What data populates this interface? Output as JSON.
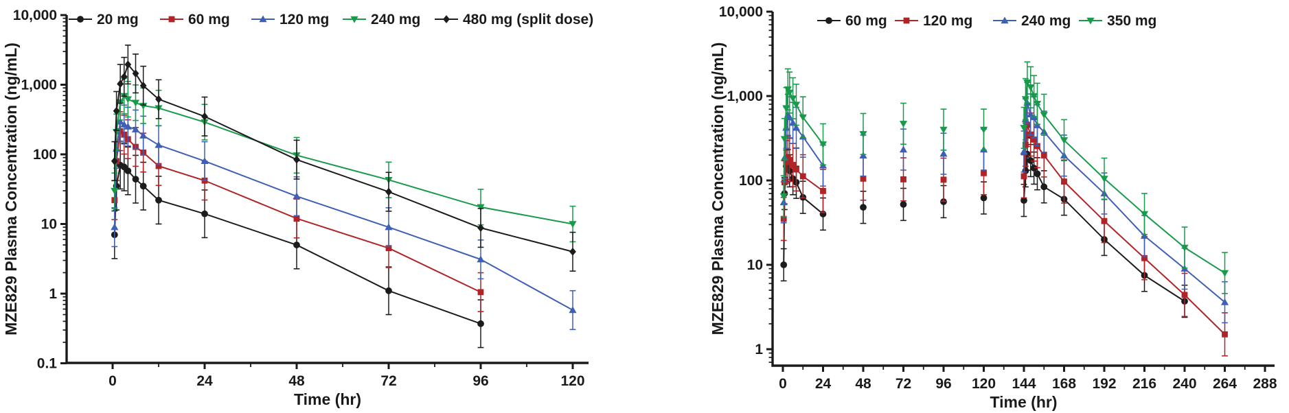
{
  "page": {
    "background": "#ffffff"
  },
  "charts": [
    {
      "id": "single-dose",
      "type": "line",
      "title": "",
      "xlabel": "Time (hr)",
      "ylabel": "MZE829 Plasma Concentration (ng/mL)",
      "x_unit": "hr",
      "xlim": [
        0,
        120
      ],
      "ylim": [
        0.1,
        10000
      ],
      "y_scale": "log",
      "grid": false,
      "legend_position": "top",
      "x_major_ticks": [
        0,
        24,
        48,
        72,
        96,
        120
      ],
      "x_minor_step": 12,
      "y_ticks": [
        {
          "value": 10000,
          "label": "10,000"
        },
        {
          "value": 1000,
          "label": "1,000"
        },
        {
          "value": 100,
          "label": "100"
        },
        {
          "value": 10,
          "label": "10"
        },
        {
          "value": 1,
          "label": "1"
        },
        {
          "value": 0.1,
          "label": "0.1"
        }
      ],
      "series": [
        {
          "label": "20 mg",
          "color": "#1c1c1c",
          "marker": "circle",
          "error_factor": 2.2,
          "segments": [
            [
              [
                0.5,
                7
              ],
              [
                1,
                35
              ],
              [
                2,
                70
              ],
              [
                3,
                66
              ],
              [
                4,
                58
              ],
              [
                6,
                44
              ],
              [
                8,
                35
              ],
              [
                12,
                22
              ],
              [
                24,
                14
              ],
              [
                48,
                5
              ],
              [
                72,
                1.1
              ],
              [
                96,
                0.37
              ]
            ]
          ]
        },
        {
          "label": "60 mg",
          "color": "#b02428",
          "marker": "square",
          "error_factor": 1.9,
          "segments": [
            [
              [
                0.5,
                22
              ],
              [
                1,
                80
              ],
              [
                2,
                215
              ],
              [
                3,
                192
              ],
              [
                4,
                165
              ],
              [
                6,
                128
              ],
              [
                8,
                106
              ],
              [
                12,
                68
              ],
              [
                24,
                42
              ],
              [
                48,
                12
              ],
              [
                72,
                4.5
              ],
              [
                96,
                1.05
              ]
            ]
          ]
        },
        {
          "label": "120 mg",
          "color": "#3f5fb5",
          "marker": "triangle-up",
          "error_factor": 1.9,
          "segments": [
            [
              [
                0.5,
                9
              ],
              [
                1,
                120
              ],
              [
                2,
                295
              ],
              [
                3,
                268
              ],
              [
                4,
                250
              ],
              [
                6,
                228
              ],
              [
                8,
                186
              ],
              [
                12,
                136
              ],
              [
                24,
                80
              ],
              [
                48,
                25
              ],
              [
                72,
                9
              ],
              [
                96,
                3.1
              ],
              [
                120,
                0.58
              ]
            ]
          ]
        },
        {
          "label": "240 mg",
          "color": "#189a4a",
          "marker": "triangle-down",
          "error_factor": 1.8,
          "segments": [
            [
              [
                0.5,
                30
              ],
              [
                1,
                210
              ],
              [
                2,
                560
              ],
              [
                3,
                690
              ],
              [
                4,
                620
              ],
              [
                6,
                552
              ],
              [
                8,
                500
              ],
              [
                12,
                462
              ],
              [
                24,
                290
              ],
              [
                48,
                97
              ],
              [
                72,
                43
              ],
              [
                96,
                17.5
              ],
              [
                120,
                10
              ]
            ]
          ]
        },
        {
          "label": "480 mg (split dose)",
          "color": "#1c1c1c",
          "marker": "diamond",
          "error_factor": 1.9,
          "segments": [
            [
              [
                0.5,
                80
              ],
              [
                1,
                420
              ],
              [
                2,
                1030
              ],
              [
                3,
                1300
              ],
              [
                4,
                1950
              ],
              [
                6,
                1450
              ],
              [
                8,
                970
              ],
              [
                12,
                620
              ],
              [
                24,
                350
              ],
              [
                48,
                84
              ],
              [
                72,
                29
              ],
              [
                96,
                8.8
              ],
              [
                120,
                4
              ]
            ]
          ]
        }
      ]
    },
    {
      "id": "multiple-dose",
      "type": "line",
      "title": "",
      "xlabel": "Time (hr)",
      "ylabel": "MZE829 Plasma Concentration (ng/mL)",
      "x_unit": "hr",
      "xlim": [
        0,
        288
      ],
      "ylim": [
        1,
        10000
      ],
      "y_scale": "log",
      "grid": false,
      "legend_position": "top",
      "x_major_ticks": [
        0,
        24,
        48,
        72,
        96,
        120,
        144,
        168,
        192,
        216,
        240,
        264,
        288
      ],
      "x_minor_step": 12,
      "y_ticks": [
        {
          "value": 10000,
          "label": "10,000"
        },
        {
          "value": 1000,
          "label": "1,000"
        },
        {
          "value": 100,
          "label": "100"
        },
        {
          "value": 10,
          "label": "10"
        },
        {
          "value": 1,
          "label": "1"
        }
      ],
      "series": [
        {
          "label": "60 mg",
          "color": "#1c1c1c",
          "marker": "circle",
          "error_factor": 1.55,
          "segments": [
            [
              [
                0.5,
                10
              ],
              [
                1,
                70
              ],
              [
                2,
                148
              ],
              [
                3,
                150
              ],
              [
                4,
                130
              ],
              [
                6,
                105
              ],
              [
                8,
                95
              ],
              [
                12,
                63
              ],
              [
                24,
                40
              ]
            ],
            [
              [
                48,
                48
              ]
            ],
            [
              [
                72,
                52
              ]
            ],
            [
              [
                96,
                56
              ]
            ],
            [
              [
                120,
                62
              ]
            ],
            [
              [
                144,
                58
              ],
              [
                145,
                130
              ],
              [
                146,
                205
              ],
              [
                148,
                172
              ],
              [
                150,
                140
              ],
              [
                152,
                120
              ],
              [
                156,
                84
              ],
              [
                168,
                60
              ],
              [
                192,
                20
              ],
              [
                216,
                7.5
              ],
              [
                240,
                3.7
              ]
            ]
          ]
        },
        {
          "label": "120 mg",
          "color": "#b02428",
          "marker": "square",
          "error_factor": 1.8,
          "segments": [
            [
              [
                0.5,
                35
              ],
              [
                1,
                95
              ],
              [
                2,
                165
              ],
              [
                3,
                185
              ],
              [
                4,
                175
              ],
              [
                6,
                152
              ],
              [
                8,
                135
              ],
              [
                12,
                112
              ],
              [
                24,
                75
              ]
            ],
            [
              [
                48,
                105
              ]
            ],
            [
              [
                72,
                103
              ]
            ],
            [
              [
                96,
                102
              ]
            ],
            [
              [
                120,
                122
              ]
            ],
            [
              [
                144,
                112
              ],
              [
                145,
                265
              ],
              [
                146,
                455
              ],
              [
                148,
                350
              ],
              [
                150,
                305
              ],
              [
                152,
                255
              ],
              [
                156,
                198
              ],
              [
                168,
                97
              ],
              [
                192,
                33
              ],
              [
                216,
                12
              ],
              [
                240,
                4.4
              ],
              [
                264,
                1.5
              ]
            ]
          ]
        },
        {
          "label": "240 mg",
          "color": "#3f5fb5",
          "marker": "triangle-up",
          "error_factor": 1.75,
          "segments": [
            [
              [
                0.5,
                55
              ],
              [
                1,
                185
              ],
              [
                2,
                420
              ],
              [
                3,
                600
              ],
              [
                4,
                560
              ],
              [
                6,
                480
              ],
              [
                8,
                420
              ],
              [
                12,
                330
              ],
              [
                24,
                150
              ]
            ],
            [
              [
                48,
                197
              ]
            ],
            [
              [
                72,
                232
              ]
            ],
            [
              [
                96,
                207
              ]
            ],
            [
              [
                120,
                232
              ]
            ],
            [
              [
                144,
                220
              ],
              [
                145,
                530
              ],
              [
                146,
                830
              ],
              [
                148,
                605
              ],
              [
                150,
                560
              ],
              [
                152,
                450
              ],
              [
                156,
                378
              ],
              [
                168,
                197
              ],
              [
                192,
                70
              ],
              [
                216,
                22
              ],
              [
                240,
                9
              ],
              [
                264,
                3.6
              ]
            ]
          ]
        },
        {
          "label": "350 mg",
          "color": "#189a4a",
          "marker": "triangle-down",
          "error_factor": 1.75,
          "segments": [
            [
              [
                0.5,
                65
              ],
              [
                1,
                310
              ],
              [
                2,
                720
              ],
              [
                3,
                1200
              ],
              [
                4,
                1100
              ],
              [
                6,
                940
              ],
              [
                8,
                790
              ],
              [
                12,
                560
              ],
              [
                24,
                268
              ]
            ],
            [
              [
                48,
                355
              ]
            ],
            [
              [
                72,
                470
              ]
            ],
            [
              [
                96,
                400
              ]
            ],
            [
              [
                120,
                400
              ]
            ],
            [
              [
                144,
                420
              ],
              [
                145,
                920
              ],
              [
                146,
                1450
              ],
              [
                148,
                1270
              ],
              [
                150,
                1000
              ],
              [
                152,
                810
              ],
              [
                156,
                600
              ],
              [
                168,
                300
              ],
              [
                192,
                105
              ],
              [
                216,
                40
              ],
              [
                240,
                16
              ],
              [
                264,
                8
              ]
            ]
          ]
        }
      ]
    }
  ]
}
